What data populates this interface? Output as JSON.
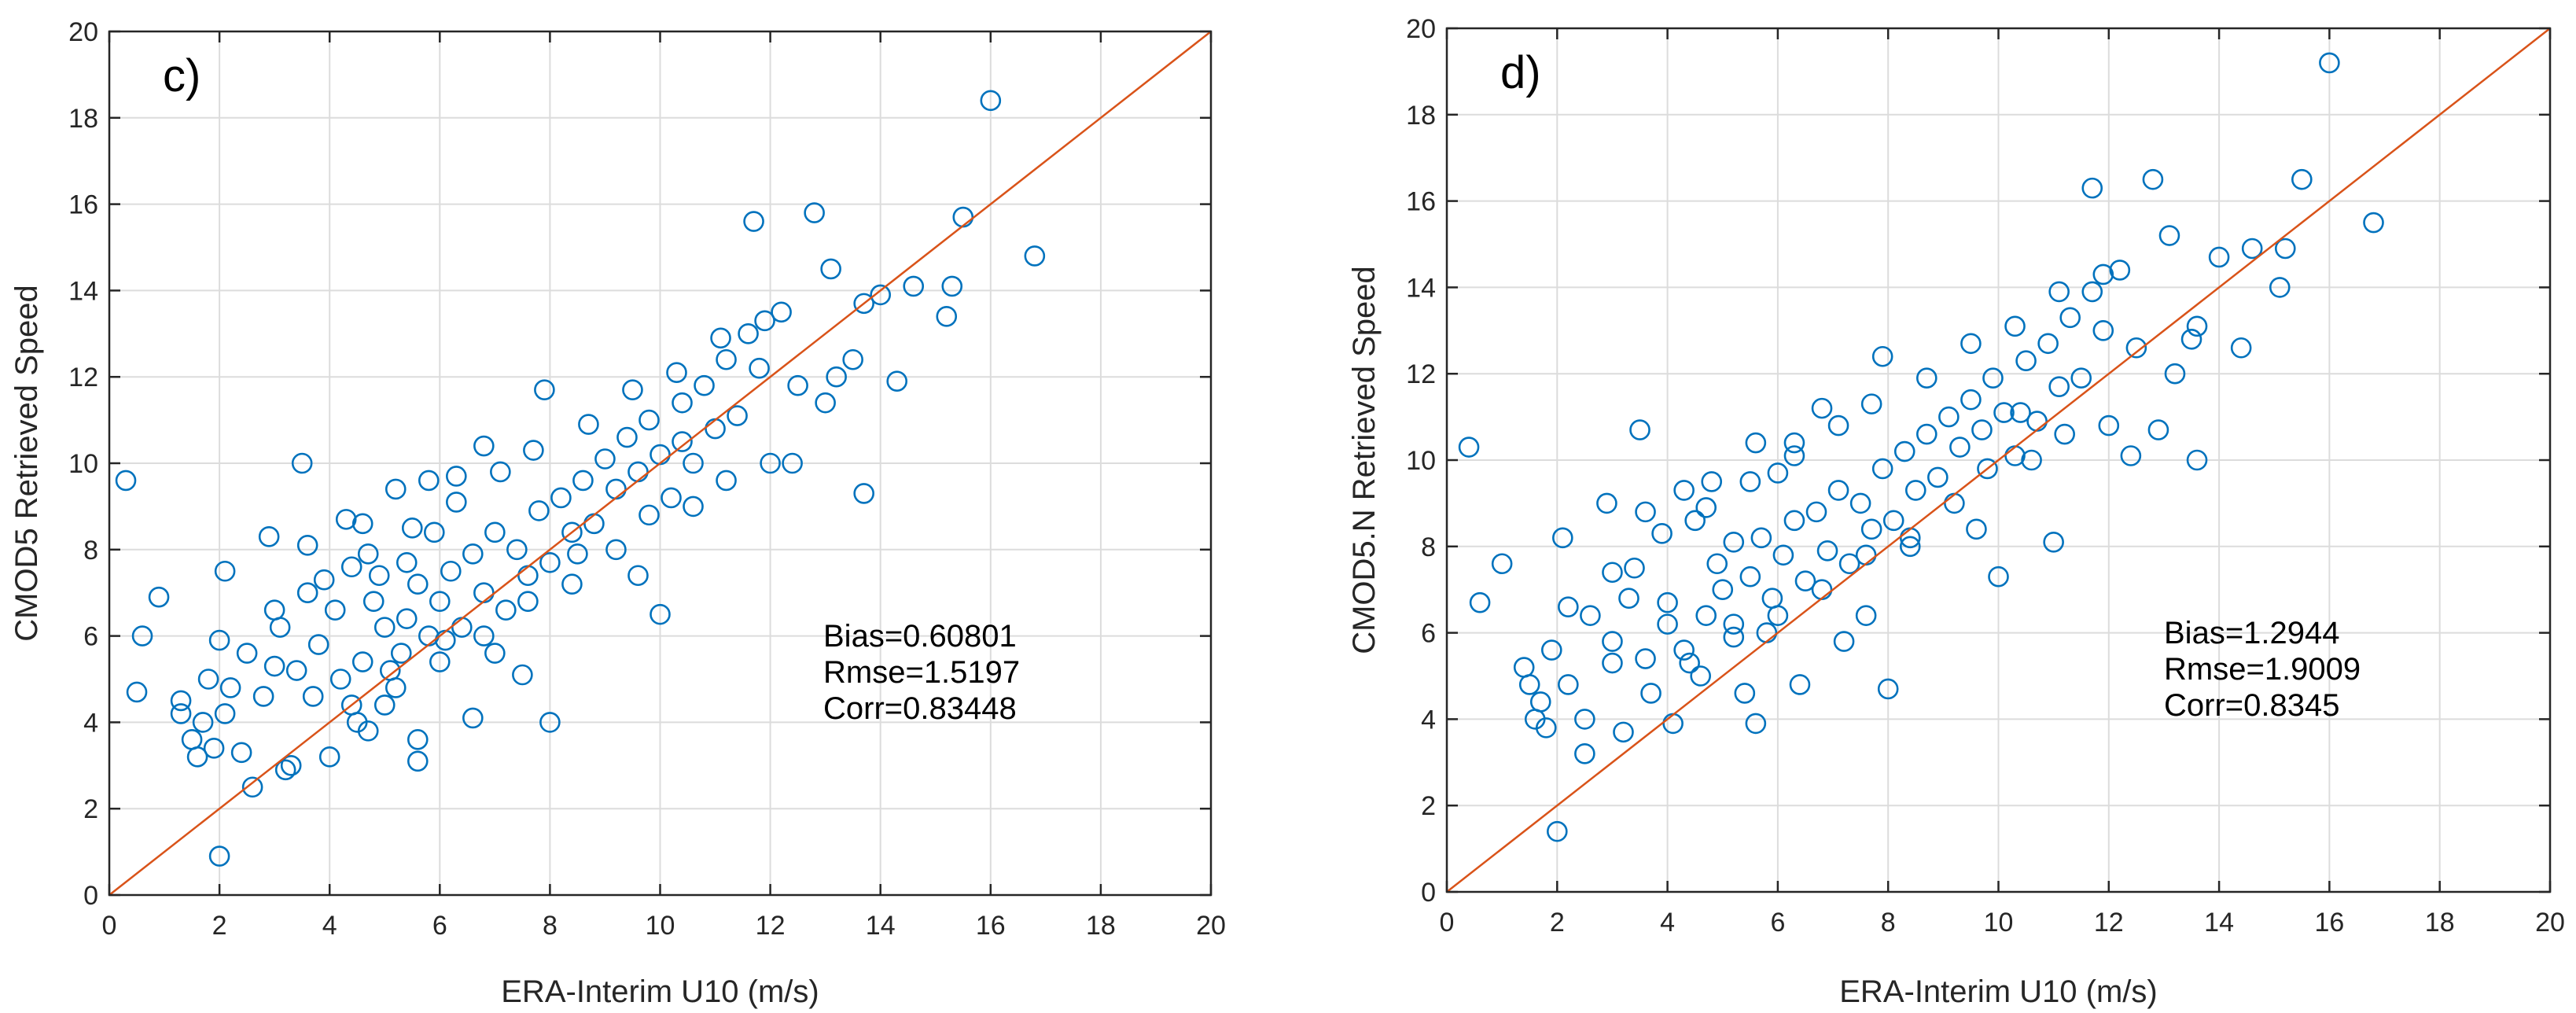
{
  "chart_data": [
    {
      "type": "scatter",
      "panel_label": "c)",
      "xlabel": "ERA-Interim U10 (m/s)",
      "ylabel": "CMOD5 Retrieved  Speed",
      "xlim": [
        0,
        20
      ],
      "ylim": [
        0,
        20
      ],
      "x_ticks": [
        "0",
        "2",
        "4",
        "6",
        "8",
        "10",
        "12",
        "14",
        "16",
        "18",
        "20"
      ],
      "y_ticks": [
        "0",
        "2",
        "4",
        "6",
        "8",
        "10",
        "12",
        "14",
        "16",
        "18",
        "20"
      ],
      "grid": true,
      "reference_line": {
        "from": [
          0,
          0
        ],
        "to": [
          20,
          20
        ],
        "color": "#D95319"
      },
      "marker_color": "#0072BD",
      "stats": [
        "Bias=0.60801",
        "Rmse=1.5197",
        "Corr=0.83448"
      ],
      "points": [
        [
          0.3,
          9.6
        ],
        [
          0.5,
          4.7
        ],
        [
          0.6,
          6.0
        ],
        [
          0.9,
          6.9
        ],
        [
          1.3,
          4.5
        ],
        [
          1.3,
          4.2
        ],
        [
          1.6,
          3.2
        ],
        [
          1.7,
          4.0
        ],
        [
          1.8,
          5.0
        ],
        [
          1.9,
          3.4
        ],
        [
          2.0,
          0.9
        ],
        [
          2.0,
          5.9
        ],
        [
          2.1,
          7.5
        ],
        [
          2.1,
          4.2
        ],
        [
          2.2,
          4.8
        ],
        [
          2.5,
          5.6
        ],
        [
          2.6,
          2.5
        ],
        [
          2.9,
          8.3
        ],
        [
          3.0,
          5.3
        ],
        [
          3.2,
          2.9
        ],
        [
          3.3,
          3.0
        ],
        [
          3.5,
          10.0
        ],
        [
          3.6,
          8.1
        ],
        [
          3.6,
          7.0
        ],
        [
          3.7,
          4.6
        ],
        [
          4.0,
          3.2
        ],
        [
          4.1,
          6.6
        ],
        [
          4.3,
          8.7
        ],
        [
          4.4,
          7.6
        ],
        [
          4.5,
          4.0
        ],
        [
          4.6,
          8.6
        ],
        [
          4.7,
          3.8
        ],
        [
          4.9,
          7.4
        ],
        [
          5.0,
          6.2
        ],
        [
          5.0,
          4.4
        ],
        [
          5.2,
          9.4
        ],
        [
          5.3,
          5.6
        ],
        [
          5.4,
          7.7
        ],
        [
          5.6,
          3.1
        ],
        [
          5.6,
          3.6
        ],
        [
          5.8,
          9.6
        ],
        [
          5.9,
          8.4
        ],
        [
          6.1,
          5.9
        ],
        [
          6.3,
          9.7
        ],
        [
          6.6,
          4.1
        ],
        [
          6.8,
          10.4
        ],
        [
          7.0,
          5.6
        ],
        [
          7.5,
          5.1
        ],
        [
          7.9,
          11.7
        ],
        [
          8.0,
          4.0
        ],
        [
          8.5,
          7.9
        ],
        [
          9.6,
          7.4
        ],
        [
          10.0,
          6.5
        ],
        [
          10.4,
          10.5
        ],
        [
          11.7,
          15.6
        ],
        [
          12.0,
          10.0
        ],
        [
          12.4,
          10.0
        ],
        [
          12.8,
          15.8
        ],
        [
          13.0,
          11.4
        ],
        [
          13.1,
          14.5
        ],
        [
          13.2,
          12.0
        ],
        [
          13.5,
          12.4
        ],
        [
          13.7,
          9.3
        ],
        [
          13.7,
          13.7
        ],
        [
          14.0,
          13.9
        ],
        [
          14.3,
          11.9
        ],
        [
          14.6,
          14.1
        ],
        [
          15.2,
          13.4
        ],
        [
          15.3,
          14.1
        ],
        [
          15.5,
          15.7
        ],
        [
          16.0,
          18.4
        ],
        [
          16.8,
          14.8
        ],
        [
          1.5,
          3.6
        ],
        [
          2.4,
          3.3
        ],
        [
          2.8,
          4.6
        ],
        [
          3.1,
          6.2
        ],
        [
          3.4,
          5.2
        ],
        [
          3.8,
          5.8
        ],
        [
          4.2,
          5.0
        ],
        [
          4.6,
          5.4
        ],
        [
          4.8,
          6.8
        ],
        [
          5.1,
          5.2
        ],
        [
          5.4,
          6.4
        ],
        [
          5.6,
          7.2
        ],
        [
          5.8,
          6.0
        ],
        [
          6.0,
          6.8
        ],
        [
          6.2,
          7.5
        ],
        [
          6.4,
          6.2
        ],
        [
          6.6,
          7.9
        ],
        [
          6.8,
          7.0
        ],
        [
          7.0,
          8.4
        ],
        [
          7.2,
          6.6
        ],
        [
          7.4,
          8.0
        ],
        [
          7.6,
          7.4
        ],
        [
          7.8,
          8.9
        ],
        [
          8.0,
          7.7
        ],
        [
          8.2,
          9.2
        ],
        [
          8.4,
          8.4
        ],
        [
          8.6,
          9.6
        ],
        [
          8.8,
          8.6
        ],
        [
          9.0,
          10.1
        ],
        [
          9.2,
          9.4
        ],
        [
          9.4,
          10.6
        ],
        [
          9.6,
          9.8
        ],
        [
          9.8,
          11.0
        ],
        [
          10.0,
          10.2
        ],
        [
          10.2,
          9.2
        ],
        [
          10.4,
          11.4
        ],
        [
          10.6,
          10.0
        ],
        [
          10.8,
          11.8
        ],
        [
          11.0,
          10.8
        ],
        [
          11.2,
          12.4
        ],
        [
          11.4,
          11.1
        ],
        [
          11.6,
          13.0
        ],
        [
          11.8,
          12.2
        ],
        [
          12.2,
          13.5
        ],
        [
          12.5,
          11.8
        ],
        [
          4.4,
          4.4
        ],
        [
          5.2,
          4.8
        ],
        [
          6.0,
          5.4
        ],
        [
          6.8,
          6.0
        ],
        [
          7.6,
          6.8
        ],
        [
          8.4,
          7.2
        ],
        [
          9.2,
          8.0
        ],
        [
          9.8,
          8.8
        ],
        [
          10.6,
          9.0
        ],
        [
          11.2,
          9.6
        ],
        [
          3.0,
          6.6
        ],
        [
          3.9,
          7.3
        ],
        [
          4.7,
          7.9
        ],
        [
          5.5,
          8.5
        ],
        [
          6.3,
          9.1
        ],
        [
          7.1,
          9.8
        ],
        [
          7.7,
          10.3
        ],
        [
          8.7,
          10.9
        ],
        [
          9.5,
          11.7
        ],
        [
          10.3,
          12.1
        ],
        [
          11.1,
          12.9
        ],
        [
          11.9,
          13.3
        ]
      ]
    },
    {
      "type": "scatter",
      "panel_label": "d)",
      "xlabel": "ERA-Interim U10 (m/s)",
      "ylabel": "CMOD5.N Retrieved  Speed",
      "xlim": [
        0,
        20
      ],
      "ylim": [
        0,
        20
      ],
      "x_ticks": [
        "0",
        "2",
        "4",
        "6",
        "8",
        "10",
        "12",
        "14",
        "16",
        "18",
        "20"
      ],
      "y_ticks": [
        "0",
        "2",
        "4",
        "6",
        "8",
        "10",
        "12",
        "14",
        "16",
        "18",
        "20"
      ],
      "grid": true,
      "reference_line": {
        "from": [
          0,
          0
        ],
        "to": [
          20,
          20
        ],
        "color": "#D95319"
      },
      "marker_color": "#0072BD",
      "stats": [
        "Bias=1.2944",
        "Rmse=1.9009",
        "Corr=0.8345"
      ],
      "points": [
        [
          0.4,
          10.3
        ],
        [
          0.6,
          6.7
        ],
        [
          1.0,
          7.6
        ],
        [
          1.4,
          5.2
        ],
        [
          1.5,
          4.8
        ],
        [
          1.6,
          4.0
        ],
        [
          1.8,
          3.8
        ],
        [
          1.9,
          5.6
        ],
        [
          2.0,
          1.4
        ],
        [
          2.1,
          8.2
        ],
        [
          2.2,
          6.6
        ],
        [
          2.2,
          4.8
        ],
        [
          2.5,
          3.2
        ],
        [
          2.6,
          6.4
        ],
        [
          2.9,
          9.0
        ],
        [
          3.0,
          5.3
        ],
        [
          3.2,
          3.7
        ],
        [
          3.4,
          7.5
        ],
        [
          3.5,
          10.7
        ],
        [
          3.6,
          8.8
        ],
        [
          3.7,
          4.6
        ],
        [
          4.0,
          6.7
        ],
        [
          4.1,
          3.9
        ],
        [
          4.3,
          9.3
        ],
        [
          4.5,
          8.6
        ],
        [
          4.6,
          5.0
        ],
        [
          4.8,
          9.5
        ],
        [
          5.0,
          7.0
        ],
        [
          5.2,
          8.1
        ],
        [
          5.4,
          4.6
        ],
        [
          5.6,
          3.9
        ],
        [
          5.6,
          10.4
        ],
        [
          5.8,
          6.0
        ],
        [
          6.0,
          9.7
        ],
        [
          6.3,
          10.4
        ],
        [
          6.4,
          4.8
        ],
        [
          6.8,
          11.2
        ],
        [
          7.2,
          5.8
        ],
        [
          7.6,
          6.4
        ],
        [
          7.9,
          12.4
        ],
        [
          8.0,
          4.7
        ],
        [
          8.4,
          8.0
        ],
        [
          9.6,
          8.4
        ],
        [
          10.0,
          7.3
        ],
        [
          10.4,
          11.1
        ],
        [
          11.0,
          8.1
        ],
        [
          11.7,
          16.3
        ],
        [
          12.0,
          10.8
        ],
        [
          12.4,
          10.1
        ],
        [
          12.8,
          16.5
        ],
        [
          12.9,
          10.7
        ],
        [
          13.1,
          15.2
        ],
        [
          13.2,
          12.0
        ],
        [
          13.5,
          12.8
        ],
        [
          13.6,
          10.0
        ],
        [
          13.6,
          13.1
        ],
        [
          14.0,
          14.7
        ],
        [
          14.4,
          12.6
        ],
        [
          14.6,
          14.9
        ],
        [
          15.1,
          14.0
        ],
        [
          15.2,
          14.9
        ],
        [
          15.5,
          16.5
        ],
        [
          16.0,
          19.2
        ],
        [
          16.8,
          15.5
        ],
        [
          1.7,
          4.4
        ],
        [
          2.5,
          4.0
        ],
        [
          3.0,
          5.8
        ],
        [
          3.3,
          6.8
        ],
        [
          3.6,
          5.4
        ],
        [
          4.0,
          6.2
        ],
        [
          4.3,
          5.6
        ],
        [
          4.7,
          6.4
        ],
        [
          4.9,
          7.6
        ],
        [
          5.2,
          6.2
        ],
        [
          5.5,
          7.3
        ],
        [
          5.7,
          8.2
        ],
        [
          5.9,
          6.8
        ],
        [
          6.1,
          7.8
        ],
        [
          6.3,
          8.6
        ],
        [
          6.5,
          7.2
        ],
        [
          6.7,
          8.8
        ],
        [
          6.9,
          7.9
        ],
        [
          7.1,
          9.3
        ],
        [
          7.3,
          7.6
        ],
        [
          7.5,
          9.0
        ],
        [
          7.7,
          8.4
        ],
        [
          7.9,
          9.8
        ],
        [
          8.1,
          8.6
        ],
        [
          8.3,
          10.2
        ],
        [
          8.5,
          9.3
        ],
        [
          8.7,
          10.6
        ],
        [
          8.9,
          9.6
        ],
        [
          9.1,
          11.0
        ],
        [
          9.3,
          10.3
        ],
        [
          9.5,
          11.4
        ],
        [
          9.7,
          10.7
        ],
        [
          9.9,
          11.9
        ],
        [
          10.1,
          11.1
        ],
        [
          10.3,
          10.1
        ],
        [
          10.5,
          12.3
        ],
        [
          10.7,
          10.9
        ],
        [
          10.9,
          12.7
        ],
        [
          11.1,
          11.7
        ],
        [
          11.3,
          13.3
        ],
        [
          11.5,
          11.9
        ],
        [
          11.7,
          13.9
        ],
        [
          11.9,
          13.0
        ],
        [
          12.2,
          14.4
        ],
        [
          12.5,
          12.6
        ],
        [
          4.4,
          5.3
        ],
        [
          5.2,
          5.9
        ],
        [
          6.0,
          6.4
        ],
        [
          6.8,
          7.0
        ],
        [
          7.6,
          7.8
        ],
        [
          8.4,
          8.2
        ],
        [
          9.2,
          9.0
        ],
        [
          9.8,
          9.8
        ],
        [
          10.6,
          10.0
        ],
        [
          11.2,
          10.6
        ],
        [
          3.0,
          7.4
        ],
        [
          3.9,
          8.3
        ],
        [
          4.7,
          8.9
        ],
        [
          5.5,
          9.5
        ],
        [
          6.3,
          10.1
        ],
        [
          7.1,
          10.8
        ],
        [
          7.7,
          11.3
        ],
        [
          8.7,
          11.9
        ],
        [
          9.5,
          12.7
        ],
        [
          10.3,
          13.1
        ],
        [
          11.1,
          13.9
        ],
        [
          11.9,
          14.3
        ]
      ]
    }
  ]
}
